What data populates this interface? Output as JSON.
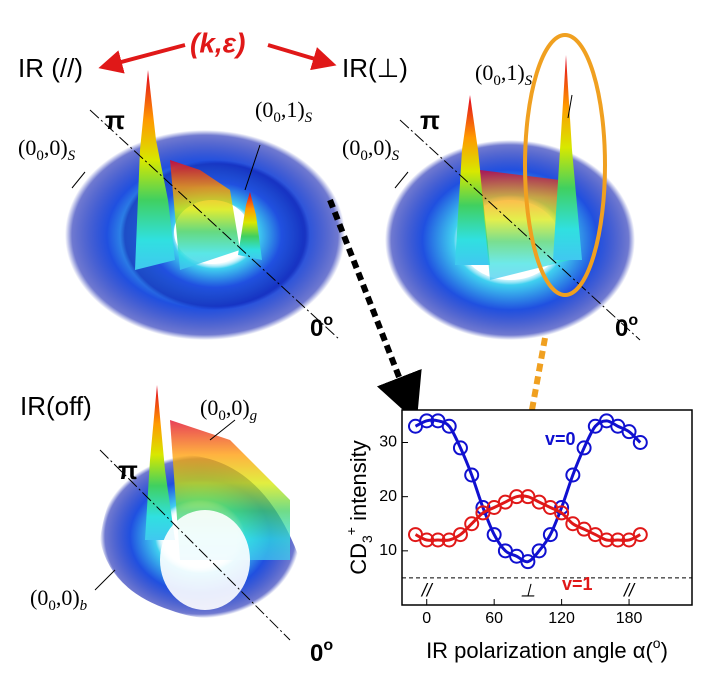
{
  "labels": {
    "arrow_label": "(k,ε)",
    "left_title": "IR (//)",
    "right_title": "IR(⊥)",
    "bottom_title": "IR(off)",
    "pi_left": "π",
    "pi_right": "π",
    "pi_bottom": "π",
    "zero_left": [
      "0",
      "o"
    ],
    "zero_right": [
      "0",
      "o"
    ],
    "zero_bottom": [
      "0",
      "o"
    ],
    "left_state_a": [
      "(0",
      "0",
      ",0)",
      "S"
    ],
    "left_state_b": [
      "(0",
      "0",
      ",1)",
      "S"
    ],
    "right_state_a": [
      "(0",
      "0",
      ",0)",
      "S"
    ],
    "right_state_b": [
      "(0",
      "0",
      ",1)",
      "S"
    ],
    "bottom_state_a": [
      "(0",
      "0",
      ",0)",
      "g"
    ],
    "bottom_state_b": [
      "(0",
      "0",
      ",0)",
      "b"
    ]
  },
  "chart_data": {
    "type": "scatter",
    "x_label": [
      "IR polarization angle α(",
      "o",
      ")"
    ],
    "y_label": [
      "CD",
      "3",
      "+",
      " intensity"
    ],
    "x": [
      -10,
      0,
      10,
      20,
      30,
      40,
      50,
      60,
      70,
      80,
      90,
      100,
      110,
      120,
      130,
      140,
      150,
      160,
      170,
      180,
      190
    ],
    "series": [
      {
        "name": "v=0",
        "color": "#1010d0",
        "values": [
          33,
          34,
          34,
          33,
          29,
          24,
          18,
          13,
          10,
          9,
          8,
          10,
          13,
          18,
          24,
          29,
          33,
          34,
          33,
          32,
          30
        ]
      },
      {
        "name": "v=1",
        "color": "#e01818",
        "values": [
          13,
          12,
          12,
          12,
          13,
          15,
          17,
          18,
          19,
          20,
          20,
          19,
          18,
          17,
          15,
          14,
          13,
          12,
          12,
          12,
          13
        ]
      }
    ],
    "baseline": 5,
    "polarization_marks": [
      {
        "value": 0,
        "label": "//"
      },
      {
        "value": 90,
        "label": "⊥"
      },
      {
        "value": 180,
        "label": "//"
      }
    ],
    "xlim": [
      -22,
      236
    ],
    "xticks": [
      0,
      60,
      120,
      180
    ],
    "ylim": [
      0,
      36
    ],
    "yticks": [
      10,
      20,
      30
    ]
  }
}
